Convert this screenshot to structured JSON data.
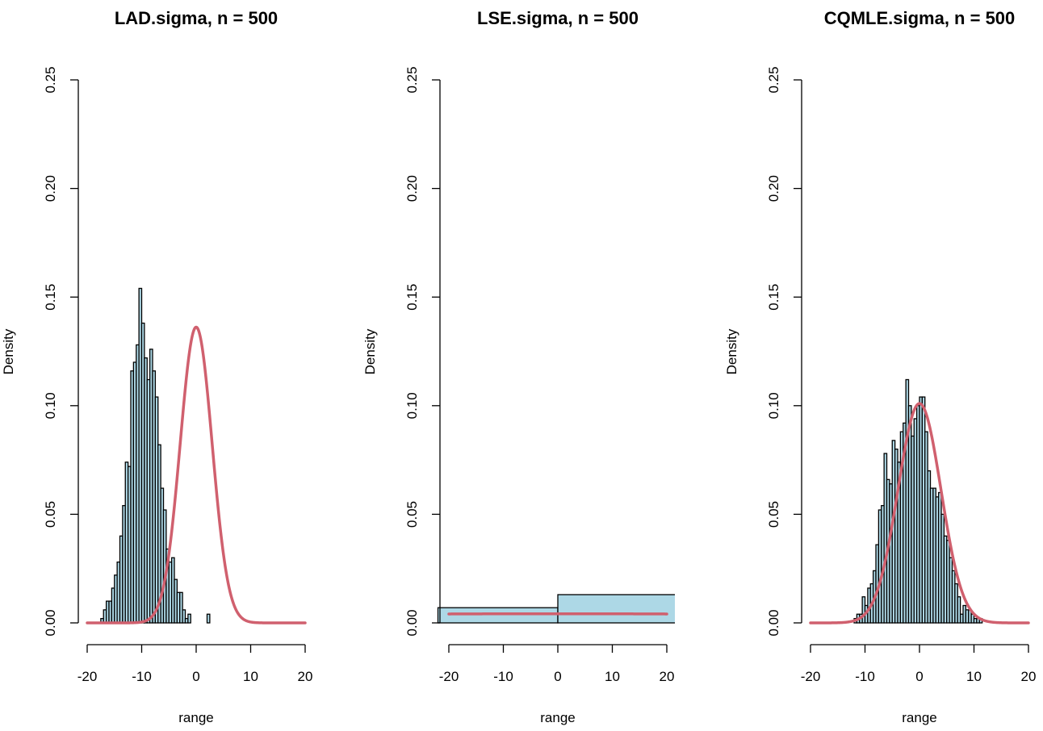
{
  "colors": {
    "bar_fill": "#add8e6",
    "curve": "#d0606e",
    "axis": "#000000"
  },
  "chart_data": [
    {
      "type": "histogram",
      "title": "LAD.sigma, n = 500",
      "xlabel": "range",
      "ylabel": "Density",
      "xlim": [
        -20,
        20
      ],
      "ylim": [
        0,
        0.25
      ],
      "xticks": [
        -20,
        -10,
        0,
        10,
        20
      ],
      "yticks": [
        0.0,
        0.05,
        0.1,
        0.15,
        0.2,
        0.25
      ],
      "bin_width": 0.5,
      "bins": [
        {
          "x0": -17.5,
          "density": 0.002
        },
        {
          "x0": -17.0,
          "density": 0.006
        },
        {
          "x0": -16.5,
          "density": 0.01
        },
        {
          "x0": -16.0,
          "density": 0.01
        },
        {
          "x0": -15.5,
          "density": 0.016
        },
        {
          "x0": -15.0,
          "density": 0.022
        },
        {
          "x0": -14.5,
          "density": 0.028
        },
        {
          "x0": -14.0,
          "density": 0.04
        },
        {
          "x0": -13.5,
          "density": 0.054
        },
        {
          "x0": -13.0,
          "density": 0.074
        },
        {
          "x0": -12.5,
          "density": 0.072
        },
        {
          "x0": -12.0,
          "density": 0.116
        },
        {
          "x0": -11.5,
          "density": 0.12
        },
        {
          "x0": -11.0,
          "density": 0.128
        },
        {
          "x0": -10.5,
          "density": 0.154
        },
        {
          "x0": -10.0,
          "density": 0.138
        },
        {
          "x0": -9.5,
          "density": 0.122
        },
        {
          "x0": -9.0,
          "density": 0.112
        },
        {
          "x0": -8.5,
          "density": 0.126
        },
        {
          "x0": -8.0,
          "density": 0.116
        },
        {
          "x0": -7.5,
          "density": 0.104
        },
        {
          "x0": -7.0,
          "density": 0.082
        },
        {
          "x0": -6.5,
          "density": 0.062
        },
        {
          "x0": -6.0,
          "density": 0.052
        },
        {
          "x0": -5.5,
          "density": 0.034
        },
        {
          "x0": -5.0,
          "density": 0.028
        },
        {
          "x0": -4.5,
          "density": 0.03
        },
        {
          "x0": -4.0,
          "density": 0.02
        },
        {
          "x0": -3.5,
          "density": 0.014
        },
        {
          "x0": -3.0,
          "density": 0.014
        },
        {
          "x0": -2.5,
          "density": 0.006
        },
        {
          "x0": -2.0,
          "density": 0.002
        },
        {
          "x0": -1.5,
          "density": 0.004
        },
        {
          "x0": 2.0,
          "density": 0.004
        }
      ],
      "curve": {
        "distribution": "normal",
        "mean": 0,
        "sd": 2.93
      }
    },
    {
      "type": "histogram",
      "title": "LSE.sigma, n = 500",
      "xlabel": "range",
      "ylabel": "Density",
      "xlim": [
        -20,
        20
      ],
      "ylim": [
        0,
        0.25
      ],
      "xticks": [
        -20,
        -10,
        0,
        10,
        20
      ],
      "yticks": [
        0.0,
        0.05,
        0.1,
        0.15,
        0.2,
        0.25
      ],
      "bin_width": 22,
      "bins": [
        {
          "x0": -22,
          "density": 0.007
        },
        {
          "x0": 0,
          "density": 0.013
        }
      ],
      "curve": {
        "distribution": "normal",
        "mean": 0,
        "sd": 95
      }
    },
    {
      "type": "histogram",
      "title": "CQMLE.sigma, n = 500",
      "xlabel": "range",
      "ylabel": "Density",
      "xlim": [
        -20,
        20
      ],
      "ylim": [
        0,
        0.25
      ],
      "xticks": [
        -20,
        -10,
        0,
        10,
        20
      ],
      "yticks": [
        0.0,
        0.05,
        0.1,
        0.15,
        0.2,
        0.25
      ],
      "bin_width": 0.5,
      "bins": [
        {
          "x0": -12.0,
          "density": 0.002
        },
        {
          "x0": -11.5,
          "density": 0.004
        },
        {
          "x0": -11.0,
          "density": 0.004
        },
        {
          "x0": -10.5,
          "density": 0.012
        },
        {
          "x0": -10.0,
          "density": 0.008
        },
        {
          "x0": -9.5,
          "density": 0.016
        },
        {
          "x0": -9.0,
          "density": 0.018
        },
        {
          "x0": -8.5,
          "density": 0.024
        },
        {
          "x0": -8.0,
          "density": 0.036
        },
        {
          "x0": -7.5,
          "density": 0.052
        },
        {
          "x0": -7.0,
          "density": 0.054
        },
        {
          "x0": -6.5,
          "density": 0.078
        },
        {
          "x0": -6.0,
          "density": 0.066
        },
        {
          "x0": -5.5,
          "density": 0.064
        },
        {
          "x0": -5.0,
          "density": 0.084
        },
        {
          "x0": -4.5,
          "density": 0.08
        },
        {
          "x0": -4.0,
          "density": 0.074
        },
        {
          "x0": -3.5,
          "density": 0.088
        },
        {
          "x0": -3.0,
          "density": 0.092
        },
        {
          "x0": -2.5,
          "density": 0.112
        },
        {
          "x0": -2.0,
          "density": 0.1
        },
        {
          "x0": -1.5,
          "density": 0.086
        },
        {
          "x0": -1.0,
          "density": 0.094
        },
        {
          "x0": -0.5,
          "density": 0.1
        },
        {
          "x0": 0.0,
          "density": 0.104
        },
        {
          "x0": 0.5,
          "density": 0.104
        },
        {
          "x0": 1.0,
          "density": 0.088
        },
        {
          "x0": 1.5,
          "density": 0.07
        },
        {
          "x0": 2.0,
          "density": 0.062
        },
        {
          "x0": 2.5,
          "density": 0.062
        },
        {
          "x0": 3.0,
          "density": 0.058
        },
        {
          "x0": 3.5,
          "density": 0.06
        },
        {
          "x0": 4.0,
          "density": 0.05
        },
        {
          "x0": 4.5,
          "density": 0.04
        },
        {
          "x0": 5.0,
          "density": 0.038
        },
        {
          "x0": 5.5,
          "density": 0.03
        },
        {
          "x0": 6.0,
          "density": 0.024
        },
        {
          "x0": 6.5,
          "density": 0.018
        },
        {
          "x0": 7.0,
          "density": 0.012
        },
        {
          "x0": 7.5,
          "density": 0.004
        },
        {
          "x0": 8.0,
          "density": 0.008
        },
        {
          "x0": 8.5,
          "density": 0.006
        },
        {
          "x0": 9.0,
          "density": 0.006
        },
        {
          "x0": 9.5,
          "density": 0.004
        },
        {
          "x0": 10.0,
          "density": 0.002
        },
        {
          "x0": 10.5,
          "density": 0.002
        },
        {
          "x0": 11.0,
          "density": 0.002
        }
      ],
      "curve": {
        "distribution": "normal",
        "mean": 0,
        "sd": 3.95
      }
    }
  ]
}
